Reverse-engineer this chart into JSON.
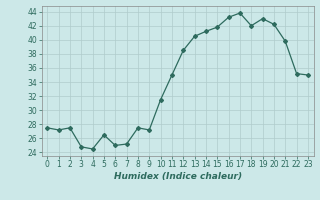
{
  "x": [
    0,
    1,
    2,
    3,
    4,
    5,
    6,
    7,
    8,
    9,
    10,
    11,
    12,
    13,
    14,
    15,
    16,
    17,
    18,
    19,
    20,
    21,
    22,
    23
  ],
  "y": [
    27.5,
    27.2,
    27.5,
    24.8,
    24.5,
    26.5,
    25.0,
    25.2,
    27.5,
    27.2,
    31.5,
    35.0,
    38.5,
    40.5,
    41.2,
    41.8,
    43.2,
    43.8,
    42.0,
    43.0,
    42.2,
    39.8,
    35.2,
    35.0
  ],
  "xlabel": "Humidex (Indice chaleur)",
  "ylim": [
    23.5,
    44.8
  ],
  "xlim": [
    -0.5,
    23.5
  ],
  "yticks": [
    24,
    26,
    28,
    30,
    32,
    34,
    36,
    38,
    40,
    42,
    44
  ],
  "xticks": [
    0,
    1,
    2,
    3,
    4,
    5,
    6,
    7,
    8,
    9,
    10,
    11,
    12,
    13,
    14,
    15,
    16,
    17,
    18,
    19,
    20,
    21,
    22,
    23
  ],
  "line_color": "#2e6b5e",
  "marker": "D",
  "marker_size": 2.0,
  "bg_color": "#cce8e8",
  "grid_color": "#b0cccc",
  "fig_bg": "#cce8e8",
  "xlabel_fontsize": 6.5,
  "tick_fontsize": 5.5
}
